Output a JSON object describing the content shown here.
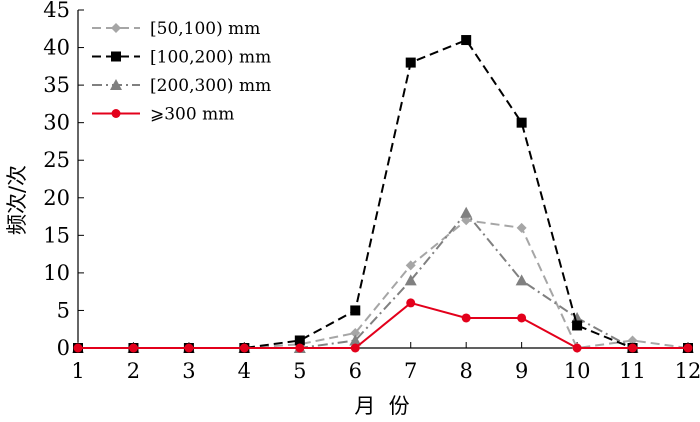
{
  "chart_data": {
    "type": "line",
    "xlabel": "月  份",
    "ylabel": "频次/次",
    "x": [
      1,
      2,
      3,
      4,
      5,
      6,
      7,
      8,
      9,
      10,
      11,
      12
    ],
    "ylim": [
      0,
      45
    ],
    "yticks": [
      0,
      5,
      10,
      15,
      20,
      25,
      30,
      35,
      40,
      45
    ],
    "grid": false,
    "legend_position": "top-left",
    "series": [
      {
        "name": "[50,100) mm",
        "values": [
          0,
          0,
          0,
          0,
          0.5,
          2,
          11,
          17,
          16,
          0,
          1,
          0
        ],
        "color": "#a6a6a6",
        "marker": "diamond",
        "dash": "dashed"
      },
      {
        "name": "[100,200) mm",
        "values": [
          0,
          0,
          0,
          0,
          1,
          5,
          38,
          41,
          30,
          3,
          0,
          0
        ],
        "color": "#000000",
        "marker": "square",
        "dash": "dashed"
      },
      {
        "name": "[200,300) mm",
        "values": [
          0,
          0,
          0,
          0,
          0,
          1,
          9,
          18,
          9,
          4,
          0,
          0
        ],
        "color": "#808080",
        "marker": "triangle",
        "dash": "dash-dot"
      },
      {
        "name": "⩾300 mm",
        "values": [
          0,
          0,
          0,
          0,
          0,
          0,
          6,
          4,
          4,
          0,
          0,
          0
        ],
        "color": "#e3001b",
        "marker": "circle",
        "dash": "solid"
      }
    ]
  }
}
